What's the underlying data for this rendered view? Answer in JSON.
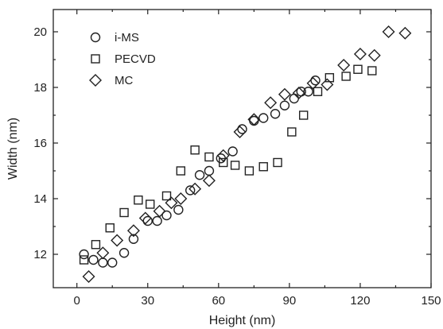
{
  "chart_data": {
    "type": "scatter",
    "xlabel": "Height (nm)",
    "ylabel": "Width (nm)",
    "xlim": [
      -10,
      150
    ],
    "ylim": [
      10.8,
      20.8
    ],
    "xticks": [
      0,
      30,
      60,
      90,
      120,
      150
    ],
    "yticks": [
      12,
      14,
      16,
      18,
      20
    ],
    "grid": false,
    "legend_position": "top-left",
    "series": [
      {
        "name": "i-MS",
        "marker": "circle",
        "points": [
          [
            3,
            12.0
          ],
          [
            7,
            11.8
          ],
          [
            11,
            11.7
          ],
          [
            15,
            11.7
          ],
          [
            20,
            12.05
          ],
          [
            24,
            12.55
          ],
          [
            30,
            13.2
          ],
          [
            34,
            13.2
          ],
          [
            38,
            13.4
          ],
          [
            43,
            13.6
          ],
          [
            48,
            14.3
          ],
          [
            52,
            14.85
          ],
          [
            56,
            15.0
          ],
          [
            61,
            15.45
          ],
          [
            66,
            15.7
          ],
          [
            70,
            16.5
          ],
          [
            75,
            16.8
          ],
          [
            79,
            16.9
          ],
          [
            84,
            17.05
          ],
          [
            88,
            17.35
          ],
          [
            92,
            17.6
          ],
          [
            95,
            17.85
          ],
          [
            98,
            17.85
          ],
          [
            101,
            18.25
          ]
        ]
      },
      {
        "name": "PECVD",
        "marker": "square",
        "points": [
          [
            3,
            11.8
          ],
          [
            8,
            12.35
          ],
          [
            14,
            12.95
          ],
          [
            20,
            13.5
          ],
          [
            26,
            13.95
          ],
          [
            31,
            13.8
          ],
          [
            38,
            14.1
          ],
          [
            44,
            15.0
          ],
          [
            50,
            15.75
          ],
          [
            56,
            15.5
          ],
          [
            62,
            15.3
          ],
          [
            67,
            15.2
          ],
          [
            73,
            15.0
          ],
          [
            79,
            15.15
          ],
          [
            85,
            15.3
          ],
          [
            91,
            16.4
          ],
          [
            96,
            17.0
          ],
          [
            102,
            17.85
          ],
          [
            107,
            18.35
          ],
          [
            114,
            18.4
          ],
          [
            119,
            18.65
          ],
          [
            125,
            18.6
          ]
        ]
      },
      {
        "name": "MC",
        "marker": "diamond",
        "points": [
          [
            5,
            11.2
          ],
          [
            11,
            12.05
          ],
          [
            17,
            12.5
          ],
          [
            24,
            12.85
          ],
          [
            29,
            13.3
          ],
          [
            35,
            13.55
          ],
          [
            40,
            13.85
          ],
          [
            44,
            14.0
          ],
          [
            50,
            14.35
          ],
          [
            56,
            14.65
          ],
          [
            62,
            15.55
          ],
          [
            69,
            16.4
          ],
          [
            75,
            16.85
          ],
          [
            82,
            17.45
          ],
          [
            88,
            17.75
          ],
          [
            94,
            17.8
          ],
          [
            100,
            18.15
          ],
          [
            106,
            18.1
          ],
          [
            113,
            18.8
          ],
          [
            120,
            19.2
          ],
          [
            126,
            19.15
          ],
          [
            132,
            20.0
          ],
          [
            139,
            19.95
          ]
        ]
      }
    ]
  }
}
